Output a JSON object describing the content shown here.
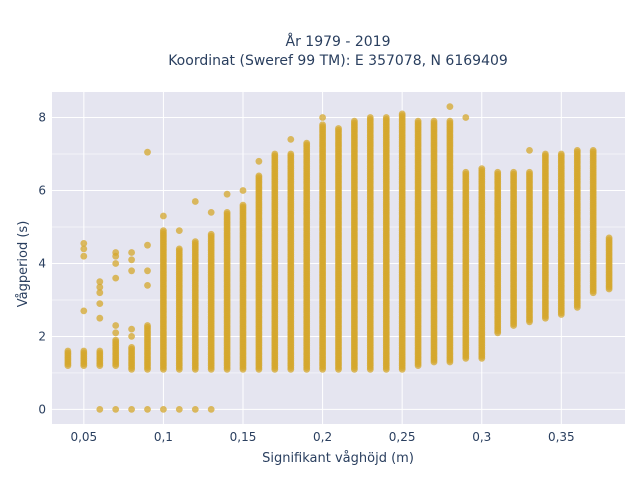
{
  "chart_data": {
    "type": "scatter",
    "title_line1": "År 1979 - 2019",
    "title_line2": "Koordinat (Sweref 99 TM): E 357078, N 6169409",
    "xlabel": "Signifikant våghöjd (m)",
    "ylabel": "Vågperiod (s)",
    "xlim": [
      0.03,
      0.39
    ],
    "ylim": [
      -0.4,
      8.7
    ],
    "x_ticks": [
      0.05,
      0.1,
      0.15,
      0.2,
      0.25,
      0.3,
      0.35
    ],
    "x_tick_labels": [
      "0,05",
      "0,1",
      "0,15",
      "0,2",
      "0,25",
      "0,3",
      "0,35"
    ],
    "y_ticks": [
      0,
      2,
      4,
      6,
      8
    ],
    "y_tick_labels": [
      "0",
      "2",
      "4",
      "6",
      "8"
    ],
    "grid": true,
    "marker_color": "#d4a72c",
    "plot_background": "#e5e5f0",
    "series": [
      {
        "columns": [
          {
            "x": 0.04,
            "ymin": 1.2,
            "ymax": 1.6
          },
          {
            "x": 0.05,
            "ymin": 1.2,
            "ymax": 1.6,
            "extra": [
              2.7,
              4.2,
              4.4,
              4.55
            ]
          },
          {
            "x": 0.06,
            "ymin": 1.2,
            "ymax": 1.6,
            "extra": [
              0,
              2.5,
              2.9,
              3.2,
              3.35,
              3.5
            ]
          },
          {
            "x": 0.07,
            "ymin": 1.2,
            "ymax": 1.9,
            "extra": [
              0,
              2.1,
              2.3,
              3.6,
              4.0,
              4.2,
              4.3
            ]
          },
          {
            "x": 0.08,
            "ymin": 1.1,
            "ymax": 1.7,
            "extra": [
              0,
              2.0,
              2.2,
              3.8,
              4.1,
              4.3
            ]
          },
          {
            "x": 0.09,
            "ymin": 1.1,
            "ymax": 2.3,
            "extra": [
              0,
              3.4,
              3.8,
              4.5,
              7.05
            ]
          },
          {
            "x": 0.1,
            "ymin": 1.1,
            "ymax": 4.9,
            "extra": [
              0,
              5.3
            ]
          },
          {
            "x": 0.11,
            "ymin": 1.1,
            "ymax": 4.4,
            "extra": [
              0,
              4.9
            ]
          },
          {
            "x": 0.12,
            "ymin": 1.1,
            "ymax": 4.6,
            "extra": [
              0,
              5.7
            ]
          },
          {
            "x": 0.13,
            "ymin": 1.1,
            "ymax": 4.8,
            "extra": [
              0,
              5.4
            ]
          },
          {
            "x": 0.14,
            "ymin": 1.1,
            "ymax": 5.4,
            "extra": [
              5.9
            ]
          },
          {
            "x": 0.15,
            "ymin": 1.1,
            "ymax": 5.6,
            "extra": [
              6.0
            ]
          },
          {
            "x": 0.16,
            "ymin": 1.1,
            "ymax": 6.4,
            "extra": [
              6.8
            ]
          },
          {
            "x": 0.17,
            "ymin": 1.1,
            "ymax": 7.0
          },
          {
            "x": 0.18,
            "ymin": 1.1,
            "ymax": 7.0,
            "extra": [
              7.4
            ]
          },
          {
            "x": 0.19,
            "ymin": 1.1,
            "ymax": 7.3
          },
          {
            "x": 0.2,
            "ymin": 1.1,
            "ymax": 7.8,
            "extra": [
              8.0
            ]
          },
          {
            "x": 0.21,
            "ymin": 1.1,
            "ymax": 7.7
          },
          {
            "x": 0.22,
            "ymin": 1.1,
            "ymax": 7.9
          },
          {
            "x": 0.23,
            "ymin": 1.1,
            "ymax": 8.0
          },
          {
            "x": 0.24,
            "ymin": 1.1,
            "ymax": 8.0
          },
          {
            "x": 0.25,
            "ymin": 1.1,
            "ymax": 8.1
          },
          {
            "x": 0.26,
            "ymin": 1.2,
            "ymax": 7.9
          },
          {
            "x": 0.27,
            "ymin": 1.3,
            "ymax": 7.9
          },
          {
            "x": 0.28,
            "ymin": 1.3,
            "ymax": 7.9,
            "extra": [
              8.3
            ]
          },
          {
            "x": 0.29,
            "ymin": 1.4,
            "ymax": 6.5,
            "extra": [
              8.0
            ]
          },
          {
            "x": 0.3,
            "ymin": 1.4,
            "ymax": 6.6
          },
          {
            "x": 0.31,
            "ymin": 2.1,
            "ymax": 6.5
          },
          {
            "x": 0.32,
            "ymin": 2.3,
            "ymax": 6.5
          },
          {
            "x": 0.33,
            "ymin": 2.4,
            "ymax": 6.5,
            "extra": [
              7.1
            ]
          },
          {
            "x": 0.34,
            "ymin": 2.5,
            "ymax": 7.0
          },
          {
            "x": 0.35,
            "ymin": 2.6,
            "ymax": 7.0
          },
          {
            "x": 0.36,
            "ymin": 2.8,
            "ymax": 7.1
          },
          {
            "x": 0.37,
            "ymin": 3.2,
            "ymax": 7.1
          },
          {
            "x": 0.38,
            "ymin": 3.3,
            "ymax": 4.7
          }
        ]
      }
    ]
  }
}
